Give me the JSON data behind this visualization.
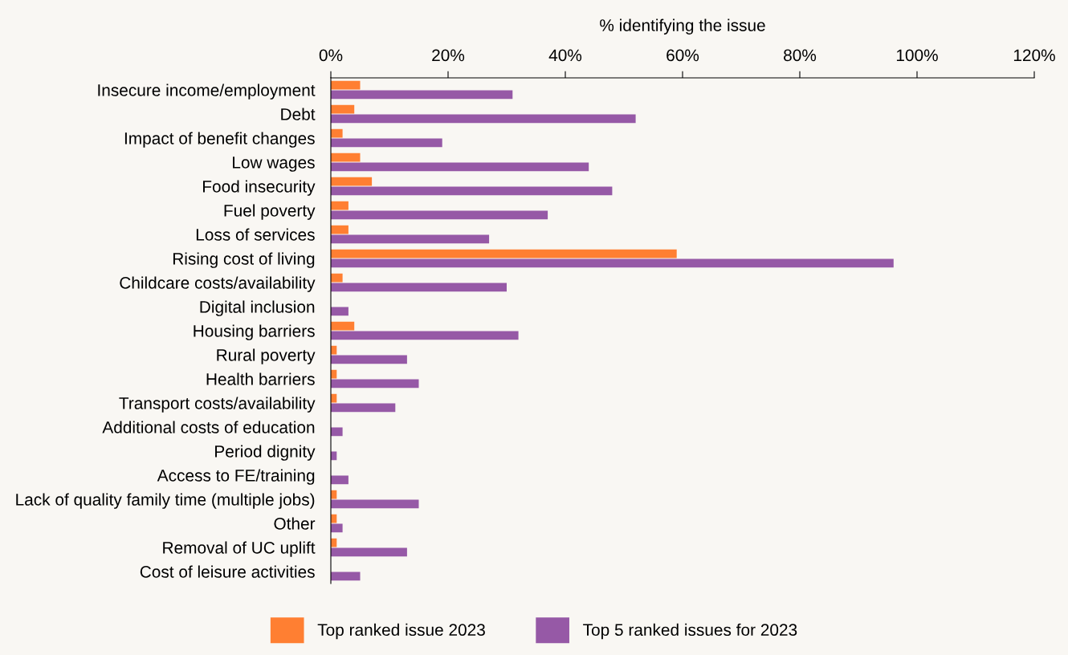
{
  "chart_data": {
    "type": "bar",
    "orientation": "horizontal",
    "xlabel": "% identifying the issue",
    "categories": [
      "Insecure income/employment",
      "Debt",
      "Impact of benefit changes",
      "Low wages",
      "Food insecurity",
      "Fuel poverty",
      "Loss of services",
      "Rising cost of living",
      "Childcare costs/availability",
      "Digital inclusion",
      "Housing barriers",
      "Rural poverty",
      "Health barriers",
      "Transport costs/availability",
      "Additional costs of education",
      "Period dignity",
      "Access to FE/training",
      "Lack of quality family time (multiple jobs)",
      "Other",
      "Removal of UC uplift",
      "Cost of leisure activities"
    ],
    "series": [
      {
        "name": "Top ranked issue 2023",
        "color": "#ff7f32",
        "values": [
          5,
          4,
          2,
          5,
          7,
          3,
          3,
          59,
          2,
          0,
          4,
          1,
          1,
          1,
          0,
          0,
          0,
          1,
          1,
          1,
          0
        ]
      },
      {
        "name": "Top 5 ranked issues for 2023",
        "color": "#9659a6",
        "values": [
          31,
          52,
          19,
          44,
          48,
          37,
          27,
          96,
          30,
          3,
          32,
          13,
          15,
          11,
          2,
          1,
          3,
          15,
          2,
          13,
          5
        ]
      }
    ],
    "xlim": [
      0,
      120
    ],
    "xticks": [
      {
        "value": 0,
        "label": "0%"
      },
      {
        "value": 20,
        "label": "20%"
      },
      {
        "value": 40,
        "label": "40%"
      },
      {
        "value": 60,
        "label": "60%"
      },
      {
        "value": 80,
        "label": "80%"
      },
      {
        "value": 100,
        "label": "100%"
      },
      {
        "value": 120,
        "label": "120%"
      }
    ],
    "grid": false,
    "legend": "bottom"
  }
}
